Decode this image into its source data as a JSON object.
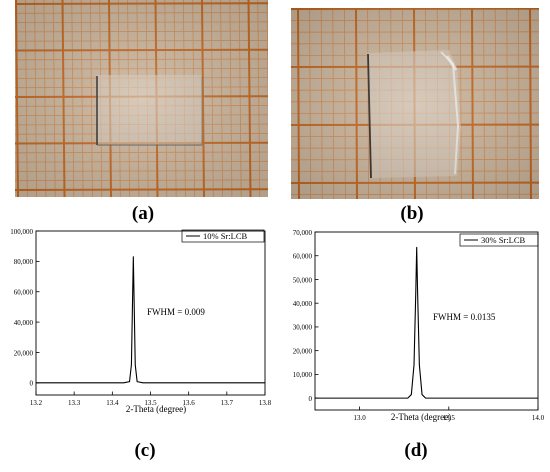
{
  "panels": [
    {
      "id": "a",
      "label": "(a)"
    },
    {
      "id": "b",
      "label": "(b)"
    },
    {
      "id": "c",
      "label": "(c)"
    },
    {
      "id": "d",
      "label": "(d)"
    }
  ],
  "photos": {
    "paper_color": "#c9b49c",
    "minor_grid_color": "#d08a52",
    "major_grid_color": "#c2661e",
    "crystal_fill": "#d7ccc0"
  },
  "chart_data": [
    {
      "type": "line",
      "panel": "(c)",
      "xlabel": "2-Theta (degree)",
      "ylabel": "",
      "xlim": [
        13.2,
        13.8
      ],
      "ylim": [
        -8000,
        100000
      ],
      "xticks": [
        13.2,
        13.3,
        13.4,
        13.5,
        13.6,
        13.7,
        13.8
      ],
      "xtick_labels": [
        "13.2",
        "13.3",
        "13.4",
        "13.5",
        "13.6",
        "13.7",
        "13.8"
      ],
      "yticks": [
        0,
        20000,
        40000,
        60000,
        80000,
        100000
      ],
      "ytick_labels": [
        "0",
        "20,000",
        "40,000",
        "60,000",
        "80,000",
        "100,000"
      ],
      "legend": "10% Sr:LCB",
      "legend_position": "top-right",
      "annotation": "FWHM = 0.009",
      "series": [
        {
          "name": "10% Sr:LCB",
          "x": [
            13.2,
            13.43,
            13.445,
            13.45,
            13.453,
            13.455,
            13.457,
            13.46,
            13.465,
            13.48,
            13.8
          ],
          "y": [
            0,
            0,
            800,
            12000,
            55000,
            83000,
            55000,
            12000,
            800,
            0,
            0
          ],
          "color": "#000000"
        }
      ]
    },
    {
      "type": "line",
      "panel": "(d)",
      "xlabel": "2-Theta (degree)",
      "ylabel": "",
      "xlim": [
        12.75,
        14.0
      ],
      "ylim": [
        -5000,
        70000
      ],
      "xticks": [
        13.0,
        13.5,
        14.0
      ],
      "xtick_labels": [
        "13.0",
        "13.5",
        "14.0"
      ],
      "yticks": [
        0,
        10000,
        20000,
        30000,
        40000,
        50000,
        60000,
        70000
      ],
      "ytick_labels": [
        "0",
        "10,000",
        "20,000",
        "30,000",
        "40,000",
        "50,000",
        "60,000",
        "70,000"
      ],
      "legend": "30% Sr:LCB",
      "legend_position": "top-right",
      "annotation": "FWHM = 0.0135",
      "series": [
        {
          "name": "30% Sr:LCB",
          "x": [
            12.75,
            13.27,
            13.29,
            13.305,
            13.315,
            13.32,
            13.325,
            13.335,
            13.35,
            13.37,
            14.0
          ],
          "y": [
            0,
            0,
            1500,
            14000,
            45000,
            63500,
            45000,
            14000,
            1500,
            0,
            0
          ],
          "color": "#000000"
        }
      ]
    }
  ]
}
